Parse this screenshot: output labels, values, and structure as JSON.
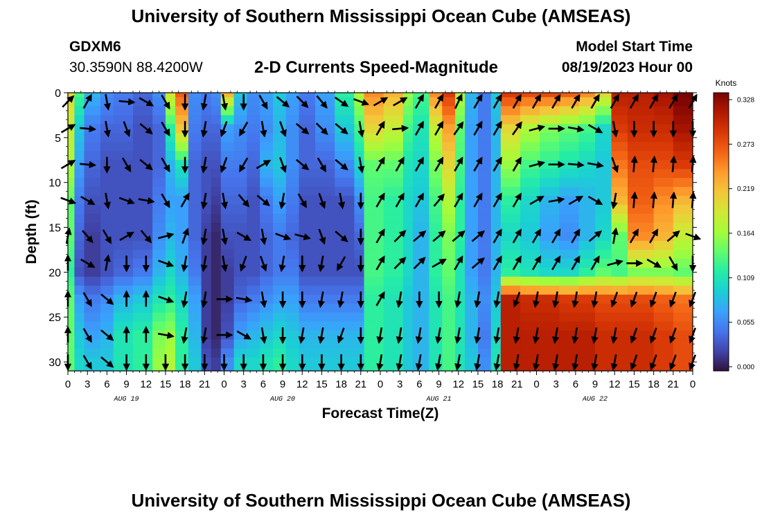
{
  "page": {
    "title_top": "University of Southern Mississippi Ocean Cube (AMSEAS)",
    "title_bottom": "University of Southern Mississippi Ocean Cube (AMSEAS)",
    "station": "GDXM6",
    "coords": "30.3590N  88.4200W",
    "subtitle": "2-D Currents Speed-Magnitude",
    "start_label": "Model Start Time",
    "start_value": "08/19/2023 Hour 00"
  },
  "chart_data": {
    "type": "heatmap",
    "title": "2-D Currents Speed-Magnitude",
    "xlabel": "Forecast Time(Z)",
    "ylabel": "Depth (ft)",
    "colorbar_label": "Knots",
    "xlim": [
      0,
      96
    ],
    "ylim": [
      31,
      0
    ],
    "x_hours": [
      0,
      3,
      6,
      9,
      12,
      15,
      18,
      21,
      24,
      27,
      30,
      33,
      36,
      39,
      42,
      45,
      48,
      51,
      54,
      57,
      60,
      63,
      66,
      69,
      72,
      75,
      78,
      81,
      84,
      87,
      90,
      93,
      96
    ],
    "x_tick_labels": [
      "0",
      "3",
      "6",
      "9",
      "12",
      "15",
      "18",
      "21",
      "0",
      "3",
      "6",
      "9",
      "12",
      "15",
      "18",
      "21",
      "0",
      "3",
      "6",
      "9",
      "12",
      "15",
      "18",
      "21",
      "0",
      "3",
      "6",
      "9",
      "12",
      "15",
      "18",
      "21",
      "0"
    ],
    "y_ticks": [
      0,
      5,
      10,
      15,
      20,
      25,
      30
    ],
    "day_labels": [
      {
        "hour": 9,
        "label": "AUG 19"
      },
      {
        "hour": 33,
        "label": "AUG 20"
      },
      {
        "hour": 57,
        "label": "AUG 21"
      },
      {
        "hour": 81,
        "label": "AUG 22"
      }
    ],
    "colorbar_ticks": [
      "0.328",
      "0.273",
      "0.219",
      "0.164",
      "0.109",
      "0.055",
      "0.000"
    ],
    "colorbar_range": [
      0,
      0.328
    ],
    "colors": [
      "#30123b",
      "#4145ab",
      "#4675ed",
      "#39a2fc",
      "#1bcfd4",
      "#24eca6",
      "#61fc6c",
      "#a4fc3b",
      "#d1e834",
      "#f3c63a",
      "#fe9b2d",
      "#f36315",
      "#d93806",
      "#b11901",
      "#7a0402"
    ],
    "arrow_color": "#000000",
    "depths": [
      0,
      4,
      8,
      12,
      16,
      20,
      23,
      27,
      30
    ],
    "speed_by_hour": [
      {
        "start": 0,
        "end": 1,
        "values": [
          0.2,
          0.18,
          0.17,
          0.14,
          0.14,
          0.12,
          0.14,
          0.14,
          0.14
        ]
      },
      {
        "start": 1,
        "end": 2.5,
        "values": [
          0.13,
          0.09,
          0.07,
          0.05,
          0.04,
          0.03,
          0.07,
          0.09,
          0.1
        ]
      },
      {
        "start": 2.5,
        "end": 5,
        "values": [
          0.08,
          0.05,
          0.04,
          0.03,
          0.02,
          0.02,
          0.05,
          0.07,
          0.09
        ]
      },
      {
        "start": 5,
        "end": 7,
        "values": [
          0.06,
          0.04,
          0.03,
          0.03,
          0.03,
          0.03,
          0.06,
          0.08,
          0.09
        ]
      },
      {
        "start": 7,
        "end": 10,
        "values": [
          0.05,
          0.04,
          0.03,
          0.03,
          0.03,
          0.04,
          0.08,
          0.11,
          0.11
        ]
      },
      {
        "start": 10,
        "end": 13,
        "values": [
          0.04,
          0.03,
          0.03,
          0.03,
          0.03,
          0.05,
          0.09,
          0.12,
          0.12
        ]
      },
      {
        "start": 13,
        "end": 15,
        "values": [
          0.06,
          0.04,
          0.04,
          0.05,
          0.06,
          0.08,
          0.11,
          0.15,
          0.16
        ]
      },
      {
        "start": 15,
        "end": 16.5,
        "values": [
          0.19,
          0.12,
          0.08,
          0.07,
          0.08,
          0.1,
          0.12,
          0.16,
          0.17
        ]
      },
      {
        "start": 16.5,
        "end": 18.5,
        "values": [
          0.26,
          0.21,
          0.11,
          0.07,
          0.07,
          0.08,
          0.1,
          0.12,
          0.12
        ]
      },
      {
        "start": 18.5,
        "end": 20.5,
        "values": [
          0.06,
          0.05,
          0.04,
          0.04,
          0.04,
          0.05,
          0.07,
          0.08,
          0.09
        ]
      },
      {
        "start": 20.5,
        "end": 22,
        "values": [
          0.05,
          0.04,
          0.03,
          0.03,
          0.02,
          0.02,
          0.02,
          0.02,
          0.03
        ]
      },
      {
        "start": 22,
        "end": 23.5,
        "values": [
          0.06,
          0.04,
          0.03,
          0.02,
          0.01,
          0.01,
          0.01,
          0.01,
          0.02
        ]
      },
      {
        "start": 23.5,
        "end": 25.5,
        "values": [
          0.22,
          0.07,
          0.05,
          0.04,
          0.03,
          0.02,
          0.02,
          0.03,
          0.06
        ]
      },
      {
        "start": 25.5,
        "end": 27.5,
        "values": [
          0.09,
          0.06,
          0.05,
          0.04,
          0.03,
          0.03,
          0.04,
          0.07,
          0.1
        ]
      },
      {
        "start": 27.5,
        "end": 29.5,
        "values": [
          0.06,
          0.05,
          0.04,
          0.03,
          0.03,
          0.03,
          0.05,
          0.08,
          0.1
        ]
      },
      {
        "start": 29.5,
        "end": 31.5,
        "values": [
          0.07,
          0.06,
          0.08,
          0.05,
          0.04,
          0.04,
          0.06,
          0.09,
          0.11
        ]
      },
      {
        "start": 31.5,
        "end": 33.5,
        "values": [
          0.09,
          0.08,
          0.09,
          0.07,
          0.05,
          0.05,
          0.07,
          0.1,
          0.12
        ]
      },
      {
        "start": 33.5,
        "end": 35.5,
        "values": [
          0.07,
          0.06,
          0.06,
          0.05,
          0.04,
          0.05,
          0.07,
          0.09,
          0.1
        ]
      },
      {
        "start": 35.5,
        "end": 38,
        "values": [
          0.05,
          0.04,
          0.04,
          0.03,
          0.03,
          0.03,
          0.05,
          0.08,
          0.09
        ]
      },
      {
        "start": 38,
        "end": 41,
        "values": [
          0.07,
          0.06,
          0.04,
          0.03,
          0.03,
          0.03,
          0.05,
          0.08,
          0.09
        ]
      },
      {
        "start": 41,
        "end": 44,
        "values": [
          0.12,
          0.09,
          0.06,
          0.03,
          0.03,
          0.03,
          0.05,
          0.08,
          0.09
        ]
      },
      {
        "start": 44,
        "end": 45.5,
        "values": [
          0.17,
          0.13,
          0.1,
          0.06,
          0.04,
          0.03,
          0.05,
          0.08,
          0.09
        ]
      },
      {
        "start": 45.5,
        "end": 48.5,
        "values": [
          0.24,
          0.2,
          0.14,
          0.13,
          0.13,
          0.13,
          0.12,
          0.12,
          0.12
        ]
      },
      {
        "start": 48.5,
        "end": 51.5,
        "values": [
          0.22,
          0.18,
          0.14,
          0.12,
          0.12,
          0.12,
          0.11,
          0.11,
          0.11
        ]
      },
      {
        "start": 51.5,
        "end": 53,
        "values": [
          0.16,
          0.13,
          0.11,
          0.1,
          0.1,
          0.1,
          0.09,
          0.09,
          0.09
        ]
      },
      {
        "start": 53,
        "end": 55.5,
        "values": [
          0.13,
          0.11,
          0.1,
          0.09,
          0.08,
          0.08,
          0.08,
          0.08,
          0.08
        ]
      },
      {
        "start": 55.5,
        "end": 57.5,
        "values": [
          0.24,
          0.18,
          0.15,
          0.13,
          0.12,
          0.12,
          0.11,
          0.11,
          0.11
        ]
      },
      {
        "start": 57.5,
        "end": 59.5,
        "values": [
          0.28,
          0.23,
          0.2,
          0.17,
          0.15,
          0.14,
          0.13,
          0.13,
          0.13
        ]
      },
      {
        "start": 59.5,
        "end": 61,
        "values": [
          0.17,
          0.14,
          0.13,
          0.12,
          0.12,
          0.11,
          0.11,
          0.11,
          0.11
        ]
      },
      {
        "start": 61,
        "end": 63,
        "values": [
          0.08,
          0.07,
          0.07,
          0.07,
          0.07,
          0.07,
          0.08,
          0.08,
          0.09
        ]
      },
      {
        "start": 63,
        "end": 65,
        "values": [
          0.05,
          0.05,
          0.05,
          0.05,
          0.05,
          0.05,
          0.06,
          0.05,
          0.06
        ]
      },
      {
        "start": 65,
        "end": 66.5,
        "values": [
          0.09,
          0.08,
          0.08,
          0.08,
          0.08,
          0.08,
          0.09,
          0.1,
          0.11
        ]
      },
      {
        "start": 66.5,
        "end": 69.5,
        "values": [
          0.28,
          0.2,
          0.16,
          0.12,
          0.1,
          0.12,
          0.3,
          0.3,
          0.3
        ]
      },
      {
        "start": 69.5,
        "end": 72.5,
        "values": [
          0.27,
          0.17,
          0.13,
          0.1,
          0.09,
          0.11,
          0.29,
          0.3,
          0.3
        ]
      },
      {
        "start": 72.5,
        "end": 75.5,
        "values": [
          0.27,
          0.15,
          0.12,
          0.08,
          0.07,
          0.1,
          0.29,
          0.3,
          0.3
        ]
      },
      {
        "start": 75.5,
        "end": 78.5,
        "values": [
          0.26,
          0.14,
          0.11,
          0.07,
          0.06,
          0.1,
          0.28,
          0.3,
          0.3
        ]
      },
      {
        "start": 78.5,
        "end": 81,
        "values": [
          0.24,
          0.13,
          0.1,
          0.08,
          0.08,
          0.12,
          0.28,
          0.3,
          0.3
        ]
      },
      {
        "start": 81,
        "end": 83.5,
        "values": [
          0.2,
          0.1,
          0.09,
          0.09,
          0.1,
          0.14,
          0.27,
          0.29,
          0.29
        ]
      },
      {
        "start": 83.5,
        "end": 86,
        "values": [
          0.3,
          0.28,
          0.25,
          0.22,
          0.14,
          0.13,
          0.27,
          0.29,
          0.29
        ]
      },
      {
        "start": 86,
        "end": 90,
        "values": [
          0.3,
          0.29,
          0.27,
          0.26,
          0.24,
          0.15,
          0.27,
          0.29,
          0.29
        ]
      },
      {
        "start": 90,
        "end": 93,
        "values": [
          0.31,
          0.29,
          0.27,
          0.24,
          0.22,
          0.15,
          0.26,
          0.28,
          0.28
        ]
      },
      {
        "start": 93,
        "end": 96.5,
        "values": [
          0.33,
          0.31,
          0.28,
          0.22,
          0.18,
          0.14,
          0.25,
          0.27,
          0.27
        ]
      }
    ],
    "vectors": {
      "hours": [
        0,
        3,
        6,
        9,
        12,
        15,
        18,
        21,
        24,
        27,
        30,
        33,
        36,
        39,
        42,
        45,
        48,
        51,
        54,
        57,
        60,
        63,
        66,
        69,
        72,
        75,
        78,
        81,
        84,
        87,
        90,
        93,
        96
      ],
      "depths": [
        1,
        4,
        8,
        12,
        16,
        19,
        23,
        27,
        30
      ],
      "angles_deg": [
        [
          45,
          60,
          -80,
          -5,
          -30,
          -60,
          -90,
          -100,
          -80,
          -90,
          -60,
          -40,
          -45,
          -50,
          -35,
          -20,
          30,
          30,
          60,
          60,
          65,
          60,
          60,
          60,
          60,
          60,
          60,
          60,
          60,
          60,
          60,
          60,
          60
        ],
        [
          30,
          -5,
          -80,
          -70,
          -40,
          -60,
          -90,
          -100,
          -110,
          -120,
          -80,
          -70,
          -40,
          -45,
          -40,
          -80,
          60,
          5,
          60,
          60,
          55,
          60,
          60,
          55,
          15,
          0,
          -10,
          -30,
          -80,
          -90,
          -90,
          -90,
          -90
        ],
        [
          30,
          -5,
          -90,
          -60,
          -40,
          -60,
          -90,
          -100,
          -110,
          -120,
          30,
          -70,
          -40,
          -60,
          -40,
          -80,
          60,
          60,
          60,
          60,
          60,
          60,
          60,
          60,
          15,
          0,
          -5,
          -10,
          -70,
          85,
          85,
          85,
          85
        ],
        [
          -20,
          -30,
          -80,
          -20,
          -10,
          -60,
          60,
          -100,
          -80,
          -50,
          -40,
          -100,
          -60,
          -70,
          -80,
          -90,
          60,
          60,
          60,
          50,
          60,
          60,
          60,
          60,
          30,
          10,
          30,
          -30,
          -100,
          85,
          85,
          85,
          85
        ],
        [
          80,
          -50,
          -60,
          30,
          -50,
          15,
          70,
          -100,
          -80,
          -30,
          -80,
          -20,
          -15,
          -70,
          -40,
          -90,
          60,
          45,
          40,
          40,
          40,
          40,
          60,
          60,
          60,
          60,
          60,
          40,
          80,
          60,
          60,
          40,
          -20
        ],
        [
          90,
          -30,
          80,
          -90,
          -90,
          -20,
          -100,
          -100,
          -80,
          -110,
          -70,
          -100,
          -90,
          -100,
          -120,
          -90,
          60,
          45,
          45,
          30,
          60,
          40,
          60,
          60,
          60,
          60,
          60,
          60,
          15,
          0,
          -30,
          -60,
          -90
        ],
        [
          90,
          -60,
          -40,
          90,
          90,
          -20,
          -100,
          -100,
          0,
          -10,
          -80,
          -90,
          -90,
          -100,
          -100,
          -90,
          60,
          -100,
          -90,
          -90,
          -100,
          -100,
          -100,
          -110,
          -100,
          -100,
          -100,
          -100,
          -110,
          -110,
          -110,
          -110,
          -110
        ],
        [
          90,
          -60,
          -40,
          90,
          90,
          -10,
          -100,
          -100,
          0,
          -30,
          -80,
          -90,
          -100,
          -100,
          -110,
          -90,
          -100,
          -100,
          -100,
          -100,
          -100,
          -100,
          -100,
          -100,
          -100,
          -100,
          -100,
          -100,
          -100,
          -110,
          -110,
          -110,
          -110
        ],
        [
          -90,
          -60,
          -40,
          -90,
          -90,
          -90,
          -90,
          -90,
          -90,
          -90,
          -90,
          -90,
          -90,
          -90,
          -90,
          -90,
          -100,
          -100,
          -100,
          -100,
          -100,
          -100,
          -100,
          -100,
          -100,
          -100,
          -100,
          -100,
          -100,
          -110,
          -110,
          -110,
          -110
        ]
      ]
    }
  }
}
